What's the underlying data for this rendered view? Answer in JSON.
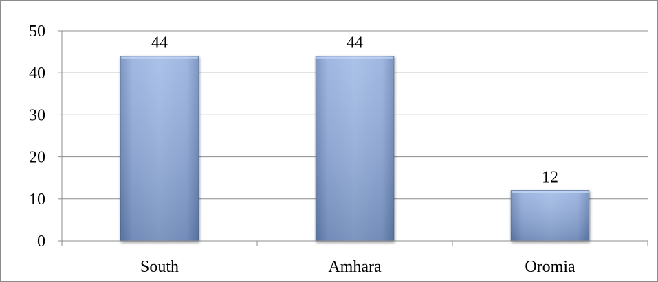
{
  "chart_data": {
    "type": "bar",
    "categories": [
      "South",
      "Amhara",
      "Oromia"
    ],
    "values": [
      44,
      44,
      12
    ],
    "data_labels": [
      "44",
      "44",
      "12"
    ],
    "title": "",
    "xlabel": "",
    "ylabel": "",
    "ylim": [
      0,
      50
    ],
    "yticks": [
      0,
      10,
      20,
      30,
      40,
      50
    ],
    "ytick_labels": [
      "0",
      "10",
      "20",
      "30",
      "40",
      "50"
    ],
    "grid": "horizontal",
    "legend": "none",
    "colors": {
      "bar_light": "#9cb8e4",
      "bar_mid": "#8eaadc",
      "bar_dark": "#6a86b6",
      "bar_edge": "#4f6f9e",
      "gridline": "#8c8c8c",
      "axis": "#8c8c8c"
    }
  }
}
